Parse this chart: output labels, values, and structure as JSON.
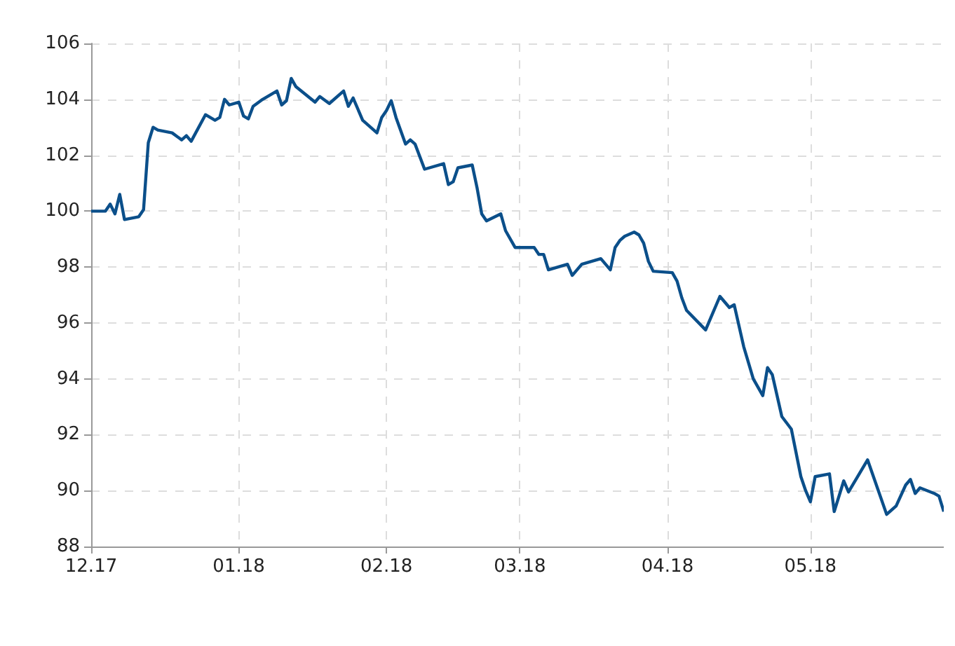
{
  "chart_data": {
    "type": "line",
    "x": [
      "2017-12-01",
      "2017-12-04",
      "2017-12-05",
      "2017-12-06",
      "2017-12-07",
      "2017-12-08",
      "2017-12-11",
      "2017-12-12",
      "2017-12-13",
      "2017-12-14",
      "2017-12-15",
      "2017-12-18",
      "2017-12-20",
      "2017-12-21",
      "2017-12-22",
      "2017-12-25",
      "2017-12-27",
      "2017-12-28",
      "2017-12-29",
      "2017-12-30",
      "2018-01-01",
      "2018-01-02",
      "2018-01-03",
      "2018-01-04",
      "2018-01-06",
      "2018-01-09",
      "2018-01-10",
      "2018-01-11",
      "2018-01-12",
      "2018-01-13",
      "2018-01-17",
      "2018-01-18",
      "2018-01-20",
      "2018-01-23",
      "2018-01-24",
      "2018-01-25",
      "2018-01-27",
      "2018-01-30",
      "2018-01-31",
      "2018-02-01",
      "2018-02-02",
      "2018-02-03",
      "2018-02-05",
      "2018-02-06",
      "2018-02-07",
      "2018-02-09",
      "2018-02-13",
      "2018-02-14",
      "2018-02-15",
      "2018-02-16",
      "2018-02-19",
      "2018-02-20",
      "2018-02-21",
      "2018-02-22",
      "2018-02-25",
      "2018-02-26",
      "2018-02-28",
      "2018-03-04",
      "2018-03-05",
      "2018-03-06",
      "2018-03-07",
      "2018-03-11",
      "2018-03-12",
      "2018-03-14",
      "2018-03-18",
      "2018-03-20",
      "2018-03-21",
      "2018-03-22",
      "2018-03-23",
      "2018-03-25",
      "2018-03-26",
      "2018-03-27",
      "2018-03-28",
      "2018-03-29",
      "2018-04-02",
      "2018-04-03",
      "2018-04-04",
      "2018-04-05",
      "2018-04-09",
      "2018-04-12",
      "2018-04-14",
      "2018-04-15",
      "2018-04-17",
      "2018-04-19",
      "2018-04-21",
      "2018-04-22",
      "2018-04-23",
      "2018-04-25",
      "2018-04-27",
      "2018-04-29",
      "2018-04-30",
      "2018-05-01",
      "2018-05-02",
      "2018-05-05",
      "2018-05-06",
      "2018-05-08",
      "2018-05-09",
      "2018-05-13",
      "2018-05-17",
      "2018-05-19",
      "2018-05-21",
      "2018-05-22",
      "2018-05-23",
      "2018-05-24",
      "2018-05-27",
      "2018-05-28",
      "2018-05-29"
    ],
    "series": [
      {
        "color": "#0b4f8a",
        "values": [
          100.0,
          100.0,
          100.25,
          99.9,
          100.6,
          99.7,
          99.8,
          100.05,
          102.45,
          103.0,
          102.9,
          102.8,
          102.55,
          102.7,
          102.5,
          103.45,
          103.25,
          103.35,
          104.0,
          103.8,
          103.9,
          103.4,
          103.3,
          103.75,
          104.0,
          104.3,
          103.8,
          103.95,
          104.75,
          104.45,
          103.9,
          104.1,
          103.85,
          104.3,
          103.75,
          104.05,
          103.25,
          102.8,
          103.35,
          103.6,
          103.95,
          103.35,
          102.4,
          102.55,
          102.4,
          101.5,
          101.7,
          100.95,
          101.05,
          101.55,
          101.65,
          100.85,
          99.9,
          99.65,
          99.9,
          99.3,
          98.7,
          98.7,
          98.45,
          98.45,
          97.9,
          98.1,
          97.7,
          98.1,
          98.3,
          97.9,
          98.7,
          98.95,
          99.1,
          99.25,
          99.15,
          98.85,
          98.2,
          97.85,
          97.8,
          97.5,
          96.9,
          96.45,
          95.75,
          96.95,
          96.55,
          96.65,
          95.15,
          94.0,
          93.4,
          94.4,
          94.15,
          92.65,
          92.2,
          90.5,
          90.0,
          89.6,
          90.5,
          90.6,
          89.25,
          90.35,
          89.95,
          91.1,
          89.15,
          89.45,
          90.2,
          90.4,
          89.9,
          90.1,
          89.9,
          89.8,
          89.25
        ]
      }
    ],
    "xlim": [
      "2017-12-01",
      "2018-05-29"
    ],
    "xticks": [
      {
        "value": "2017-12-01",
        "label": "12.17"
      },
      {
        "value": "2018-01-01",
        "label": "01.18"
      },
      {
        "value": "2018-02-01",
        "label": "02.18"
      },
      {
        "value": "2018-03-01",
        "label": "03.18"
      },
      {
        "value": "2018-04-01",
        "label": "04.18"
      },
      {
        "value": "2018-05-01",
        "label": "05.18"
      }
    ],
    "ylim": [
      88,
      106
    ],
    "yticks": [
      88,
      90,
      92,
      94,
      96,
      98,
      100,
      102,
      104,
      106
    ],
    "grid": true,
    "marker": "none",
    "line_style": "solid"
  }
}
